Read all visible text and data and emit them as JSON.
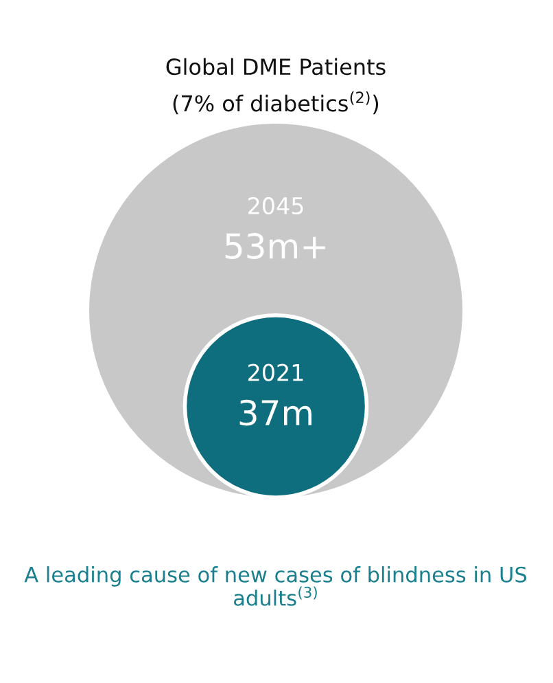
{
  "chart_data": {
    "type": "other",
    "title": "Global DME Patients",
    "subtitle": "(7% of diabetics$^{(2)}$)",
    "categories": [
      "2045",
      "2021"
    ],
    "values": [
      53,
      37
    ],
    "value_labels": [
      "53m+",
      "37m"
    ],
    "colors": [
      "#c8c8c8",
      "#0e6e7e"
    ],
    "annotations": [
      "A leading cause of new cases of blindness in US adults$^{(3)}$"
    ]
  }
}
